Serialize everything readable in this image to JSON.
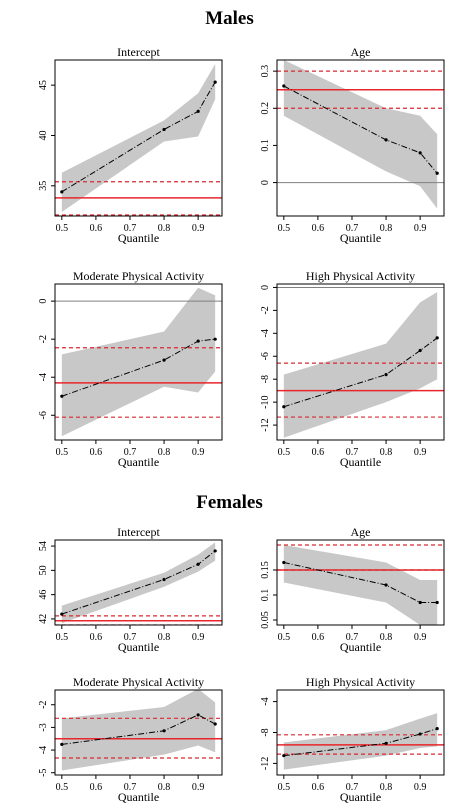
{
  "sections": {
    "males": "Males",
    "females": "Females"
  },
  "colors": {
    "band": "#c8c8c8",
    "line": "#000000",
    "ols": "#e8262b",
    "ci": "#d9282f",
    "zero": "#808080",
    "frame": "#000000"
  },
  "chart_data": [
    {
      "type": "line",
      "group": "Males",
      "title": "Intercept",
      "xlabel": "Quantile",
      "ylabel": "",
      "xlim": [
        0.48,
        0.97
      ],
      "ylim": [
        32,
        47.5
      ],
      "xticks": [
        0.5,
        0.6,
        0.7,
        0.8,
        0.9
      ],
      "yticks": [
        35,
        40,
        45
      ],
      "x": [
        0.5,
        0.8,
        0.9,
        0.95
      ],
      "values": [
        34.4,
        40.6,
        42.4,
        45.3
      ],
      "band_lower": [
        32.4,
        39.4,
        39.9,
        43.6
      ],
      "band_upper": [
        36.3,
        41.5,
        44.2,
        47.1
      ],
      "ols": 33.8,
      "ols_ci": [
        32.1,
        35.4
      ],
      "zero_line": null
    },
    {
      "type": "line",
      "group": "Males",
      "title": "Age",
      "xlabel": "Quantile",
      "ylabel": "",
      "xlim": [
        0.48,
        0.97
      ],
      "ylim": [
        -0.09,
        0.33
      ],
      "xticks": [
        0.5,
        0.6,
        0.7,
        0.8,
        0.9
      ],
      "yticks": [
        0.0,
        0.1,
        0.2,
        0.3
      ],
      "x": [
        0.5,
        0.8,
        0.9,
        0.95
      ],
      "values": [
        0.26,
        0.115,
        0.08,
        0.025
      ],
      "band_lower": [
        0.18,
        0.03,
        -0.01,
        -0.07
      ],
      "band_upper": [
        0.33,
        0.2,
        0.18,
        0.13
      ],
      "ols": 0.25,
      "ols_ci": [
        0.2,
        0.3
      ],
      "zero_line": 0
    },
    {
      "type": "line",
      "group": "Males",
      "title": "Moderate Physical Activity",
      "xlabel": "Quantile",
      "ylabel": "",
      "xlim": [
        0.48,
        0.97
      ],
      "ylim": [
        -7.3,
        0.9
      ],
      "xticks": [
        0.5,
        0.6,
        0.7,
        0.8,
        0.9
      ],
      "yticks": [
        -6,
        -4,
        -2,
        0
      ],
      "x": [
        0.5,
        0.8,
        0.9,
        0.95
      ],
      "values": [
        -5.0,
        -3.1,
        -2.1,
        -2.0
      ],
      "band_lower": [
        -7.1,
        -4.5,
        -4.8,
        -3.7
      ],
      "band_upper": [
        -2.8,
        -1.6,
        0.7,
        0.3
      ],
      "ols": -4.3,
      "ols_ci": [
        -6.1,
        -2.45
      ],
      "zero_line": 0
    },
    {
      "type": "line",
      "group": "Males",
      "title": "High Physical Activity",
      "xlabel": "Quantile",
      "ylabel": "",
      "xlim": [
        0.48,
        0.97
      ],
      "ylim": [
        -13.3,
        0.3
      ],
      "xticks": [
        0.5,
        0.6,
        0.7,
        0.8,
        0.9
      ],
      "yticks": [
        -12,
        -10,
        -8,
        -6,
        -4,
        -2,
        0
      ],
      "x": [
        0.5,
        0.8,
        0.9,
        0.95
      ],
      "values": [
        -10.4,
        -7.6,
        -5.5,
        -4.4
      ],
      "band_lower": [
        -13.1,
        -10.0,
        -8.8,
        -8.0
      ],
      "band_upper": [
        -7.6,
        -4.9,
        -1.3,
        -0.4
      ],
      "ols": -9.0,
      "ols_ci": [
        -11.3,
        -6.6
      ],
      "zero_line": 0
    },
    {
      "type": "line",
      "group": "Females",
      "title": "Intercept",
      "xlabel": "Quantile",
      "ylabel": "",
      "xlim": [
        0.48,
        0.97
      ],
      "ylim": [
        41,
        55
      ],
      "xticks": [
        0.5,
        0.6,
        0.7,
        0.8,
        0.9
      ],
      "yticks": [
        42,
        46,
        50,
        54
      ],
      "x": [
        0.5,
        0.8,
        0.9,
        0.95
      ],
      "values": [
        42.8,
        48.5,
        51.0,
        53.2
      ],
      "band_lower": [
        41.3,
        47.3,
        49.8,
        51.6
      ],
      "band_upper": [
        44.2,
        49.6,
        52.6,
        54.6
      ],
      "ols": 41.7,
      "ols_ci": [
        41.0,
        42.5
      ],
      "zero_line": null
    },
    {
      "type": "line",
      "group": "Females",
      "title": "Age",
      "xlabel": "Quantile",
      "ylabel": "",
      "xlim": [
        0.48,
        0.97
      ],
      "ylim": [
        0.04,
        0.21
      ],
      "xticks": [
        0.5,
        0.6,
        0.7,
        0.8,
        0.9
      ],
      "yticks": [
        0.05,
        0.1,
        0.15
      ],
      "x": [
        0.5,
        0.8,
        0.9,
        0.95
      ],
      "values": [
        0.165,
        0.12,
        0.085,
        0.085
      ],
      "band_lower": [
        0.125,
        0.085,
        0.04,
        0.04
      ],
      "band_upper": [
        0.2,
        0.165,
        0.13,
        0.13
      ],
      "ols": 0.15,
      "ols_ci": [
        0.15,
        0.2
      ],
      "zero_line": null
    },
    {
      "type": "line",
      "group": "Females",
      "title": "Moderate Physical Activity",
      "xlabel": "Quantile",
      "ylabel": "",
      "xlim": [
        0.48,
        0.97
      ],
      "ylim": [
        -5.1,
        -1.35
      ],
      "xticks": [
        0.5,
        0.6,
        0.7,
        0.8,
        0.9
      ],
      "yticks": [
        -5,
        -4,
        -3,
        -2
      ],
      "x": [
        0.5,
        0.8,
        0.9,
        0.95
      ],
      "values": [
        -3.75,
        -3.15,
        -2.45,
        -2.85
      ],
      "band_lower": [
        -4.9,
        -4.2,
        -3.8,
        -4.1
      ],
      "band_upper": [
        -2.6,
        -2.1,
        -1.3,
        -1.9
      ],
      "ols": -3.5,
      "ols_ci": [
        -4.35,
        -2.6
      ],
      "zero_line": null
    },
    {
      "type": "line",
      "group": "Females",
      "title": "High Physical Activity",
      "xlabel": "Quantile",
      "ylabel": "",
      "xlim": [
        0.48,
        0.97
      ],
      "ylim": [
        -13.5,
        -2.5
      ],
      "xticks": [
        0.5,
        0.6,
        0.7,
        0.8,
        0.9
      ],
      "yticks": [
        -12,
        -8,
        -4
      ],
      "x": [
        0.5,
        0.8,
        0.9,
        0.95
      ],
      "values": [
        -11.0,
        -9.4,
        -8.2,
        -7.5
      ],
      "band_lower": [
        -12.8,
        -11.0,
        -10.0,
        -9.8
      ],
      "band_upper": [
        -9.3,
        -7.7,
        -6.2,
        -5.5
      ],
      "ols": -9.6,
      "ols_ci": [
        -10.8,
        -8.3
      ],
      "zero_line": null
    }
  ]
}
